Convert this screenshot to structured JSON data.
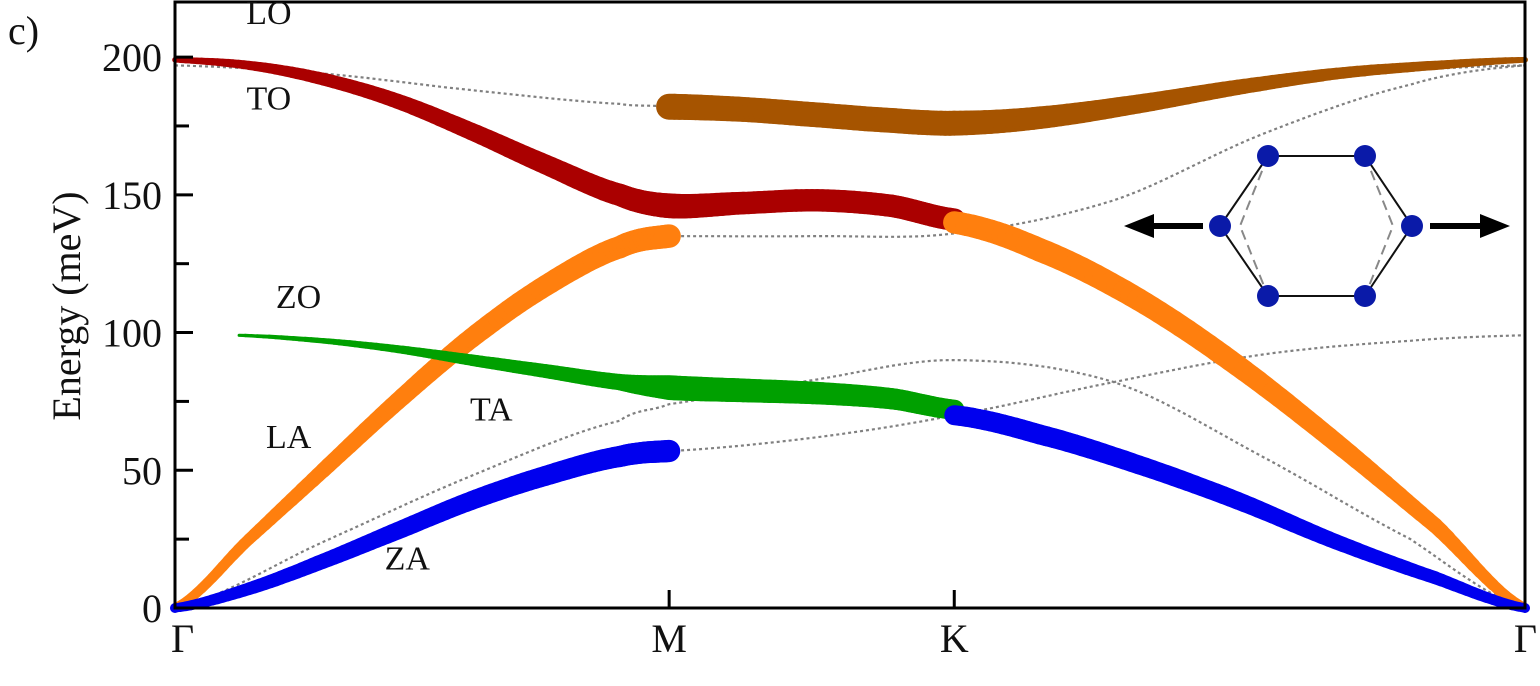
{
  "panel_label": "c)",
  "chart_data": {
    "type": "line",
    "title": "",
    "xlabel": "",
    "ylabel": "Energy (meV)",
    "ylim": [
      0,
      220
    ],
    "yticks": [
      0,
      50,
      100,
      150,
      200
    ],
    "x_ticks": [
      "Γ",
      "M",
      "K",
      "Γ"
    ],
    "x_tick_positions": [
      0,
      1,
      1.577,
      2.732
    ],
    "grid": false,
    "legend": "none",
    "branch_labels": [
      {
        "text": "LO",
        "x": 0.19,
        "y": 212
      },
      {
        "text": "TO",
        "x": 0.19,
        "y": 181
      },
      {
        "text": "ZO",
        "x": 0.25,
        "y": 109
      },
      {
        "text": "LA",
        "x": 0.23,
        "y": 58
      },
      {
        "text": "TA",
        "x": 0.64,
        "y": 68
      },
      {
        "text": "ZA",
        "x": 0.47,
        "y": 14
      }
    ],
    "series": [
      {
        "name": "LO",
        "color": "#aa0000",
        "x": [
          0,
          0.15,
          0.3,
          0.45,
          0.6,
          0.75,
          0.9,
          1.0,
          1.15,
          1.3,
          1.45,
          1.577
        ],
        "y": [
          199,
          197,
          192,
          184,
          173,
          161,
          150,
          146,
          147,
          148,
          146,
          141
        ],
        "weight": [
          0.15,
          0.3,
          0.45,
          0.55,
          0.65,
          0.75,
          0.85,
          0.95,
          0.85,
          0.85,
          0.85,
          0.85
        ]
      },
      {
        "name": "TO",
        "color": "#a65400",
        "x": [
          1.0,
          1.15,
          1.3,
          1.45,
          1.577,
          1.75,
          1.95,
          2.15,
          2.35,
          2.55,
          2.732
        ],
        "y": [
          182,
          181,
          179,
          177,
          176,
          178,
          183,
          189,
          194,
          197,
          199
        ],
        "weight": [
          1.0,
          0.95,
          0.95,
          0.95,
          0.95,
          0.85,
          0.7,
          0.55,
          0.4,
          0.3,
          0.15
        ]
      },
      {
        "name": "LA",
        "color": "#ff7f0e",
        "x": [
          0,
          0.15,
          0.3,
          0.45,
          0.6,
          0.75,
          0.9,
          1.0
        ],
        "y": [
          0,
          25,
          50,
          75,
          98,
          117,
          131,
          135
        ],
        "weight": [
          0.3,
          0.4,
          0.55,
          0.65,
          0.75,
          0.8,
          0.85,
          0.9
        ]
      },
      {
        "name": "LA",
        "color": "#ff7f0e",
        "x": [
          1.577,
          1.75,
          1.95,
          2.15,
          2.35,
          2.55,
          2.732
        ],
        "y": [
          140,
          130,
          112,
          88,
          60,
          30,
          0
        ],
        "weight": [
          0.85,
          0.9,
          0.85,
          0.8,
          0.7,
          0.55,
          0.3
        ]
      },
      {
        "name": "ZO",
        "color": "#00a000",
        "x": [
          0.13,
          0.3,
          0.45,
          0.6,
          0.75,
          0.9,
          1.0,
          1.15,
          1.3,
          1.45,
          1.577
        ],
        "y": [
          99,
          97,
          94,
          90,
          86,
          82,
          80,
          79,
          78,
          76,
          72
        ],
        "weight": [
          0.05,
          0.15,
          0.25,
          0.4,
          0.5,
          0.6,
          0.95,
          0.9,
          0.85,
          0.8,
          0.75
        ]
      },
      {
        "name": "ZA",
        "color": "#0000ee",
        "x": [
          0,
          0.15,
          0.3,
          0.45,
          0.6,
          0.75,
          0.9,
          1.0
        ],
        "y": [
          0,
          7,
          17,
          28,
          39,
          48,
          55,
          57
        ],
        "weight": [
          0.3,
          0.45,
          0.55,
          0.65,
          0.7,
          0.75,
          0.8,
          0.85
        ]
      },
      {
        "name": "ZA",
        "color": "#0000ee",
        "x": [
          1.577,
          1.75,
          1.95,
          2.15,
          2.35,
          2.55,
          2.732
        ],
        "y": [
          70,
          63,
          52,
          39,
          24,
          11,
          0
        ],
        "weight": [
          0.75,
          0.75,
          0.7,
          0.65,
          0.55,
          0.45,
          0.3
        ]
      }
    ],
    "guide_curves": [
      {
        "x": [
          0,
          0.3,
          0.6,
          0.9,
          1.0,
          1.3,
          1.577,
          1.9,
          2.2,
          2.5,
          2.732
        ],
        "y": [
          197,
          194,
          188,
          183,
          182,
          179,
          176,
          180,
          189,
          195,
          197
        ]
      },
      {
        "x": [
          1.0,
          1.3,
          1.577,
          1.9,
          2.2,
          2.5,
          2.732
        ],
        "y": [
          135,
          135,
          136,
          148,
          172,
          190,
          197
        ]
      },
      {
        "x": [
          1.0,
          1.3,
          1.577,
          1.9,
          2.2,
          2.5,
          2.732
        ],
        "y": [
          57,
          62,
          70,
          82,
          92,
          97,
          99
        ]
      },
      {
        "x": [
          0,
          0.3,
          0.6,
          0.9,
          1.0,
          1.3,
          1.577,
          1.9,
          2.2,
          2.5,
          2.732
        ],
        "y": [
          0,
          24,
          48,
          68,
          74,
          83,
          90,
          82,
          55,
          25,
          0
        ]
      }
    ],
    "inset": {
      "type": "hexagon-mode-diagram",
      "atom_color": "#0a1aa8",
      "arrows": [
        "left",
        "right"
      ]
    }
  }
}
